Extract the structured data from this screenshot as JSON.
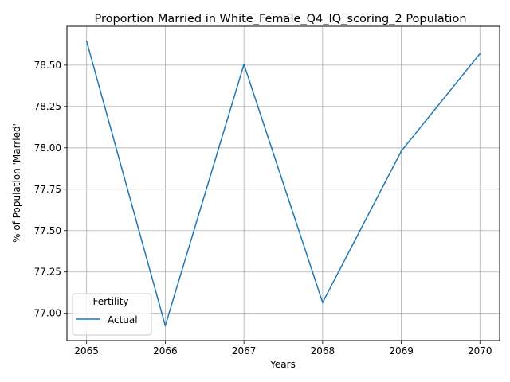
{
  "chart_data": {
    "type": "line",
    "title": "Proportion Married in White_Female_Q4_IQ_scoring_2 Population",
    "xlabel": "Years",
    "ylabel": "% of Population 'Married'",
    "x": [
      2065,
      2066,
      2067,
      2068,
      2069,
      2070
    ],
    "xticks": [
      "2065",
      "2066",
      "2067",
      "2068",
      "2069",
      "2070"
    ],
    "yticks": [
      "77.00",
      "77.25",
      "77.50",
      "77.75",
      "78.00",
      "78.25",
      "78.50"
    ],
    "ytick_values": [
      77.0,
      77.25,
      77.5,
      77.75,
      78.0,
      78.25,
      78.5
    ],
    "xlim": [
      2064.75,
      2070.25
    ],
    "ylim": [
      76.835,
      78.735
    ],
    "grid": true,
    "legend": {
      "title": "Fertility",
      "placement": "lower-left"
    },
    "series": [
      {
        "name": "Actual",
        "color": "#1f77b4",
        "values": [
          78.645,
          76.925,
          78.505,
          77.065,
          77.98,
          78.57
        ]
      }
    ]
  }
}
